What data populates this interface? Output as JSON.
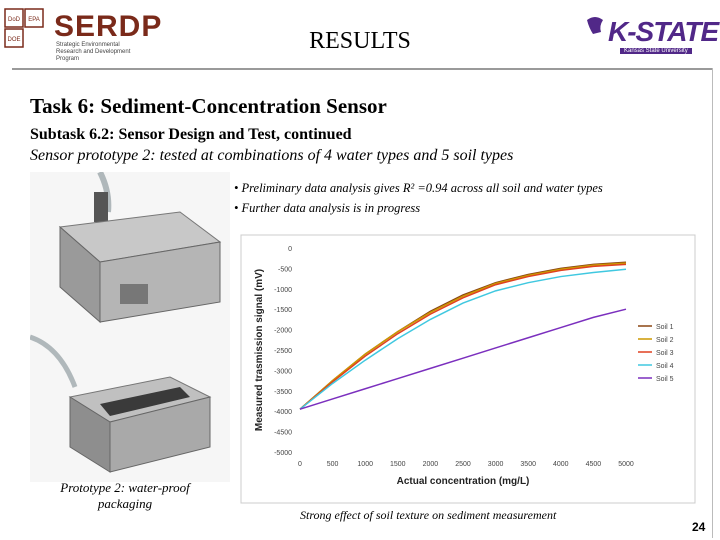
{
  "header": {
    "left_logo_text": "SERDP",
    "left_logo_subtitle": "Strategic Environmental Research and Development Program",
    "left_badge_labels": [
      "DoD",
      "EPA",
      "DOE"
    ],
    "title": "RESULTS",
    "right_logo_text": "K-STATE",
    "right_logo_subtitle": "Kansas State University"
  },
  "content": {
    "task_title": "Task 6:  Sediment-Concentration Sensor",
    "subtask": "Subtask 6.2:  Sensor Design and Test, continued",
    "prototype_description": "Sensor prototype 2: tested at combinations of 4 water types and 5 soil types",
    "bullets": [
      "• Preliminary data analysis gives R² =0.94 across all soil and water types",
      "• Further data analysis is in progress"
    ],
    "photo_caption_line1": "Prototype 2: water-proof",
    "photo_caption_line2": "packaging",
    "chart_caption": "Strong effect of soil texture on sediment measurement",
    "page_number": "24"
  },
  "colors": {
    "serdp_brown": "#7a2a1a",
    "kstate_purple": "#512888",
    "series": [
      "#8b4513",
      "#cc9900",
      "#e04020",
      "#40c8e0",
      "#7b2fbe"
    ]
  },
  "chart_data": {
    "type": "line",
    "title": "",
    "xlabel": "Actual concentration (mg/L)",
    "ylabel": "Measured trasmission signal (mV)",
    "xlim": [
      0,
      5000
    ],
    "ylim": [
      -5000,
      0
    ],
    "x_ticks": [
      "0",
      "500",
      "1000",
      "1500",
      "2000",
      "2500",
      "3000",
      "3500",
      "4000",
      "4500",
      "5000"
    ],
    "y_ticks": [
      "0",
      "-500",
      "-1000",
      "-1500",
      "-2000",
      "-2500",
      "-3000",
      "-3500",
      "-4000",
      "-4500",
      "-5000"
    ],
    "grid": false,
    "legend_position": "right",
    "series": [
      {
        "name": "Soil 1",
        "x": [
          0,
          500,
          1000,
          1500,
          2000,
          2500,
          3000,
          3500,
          4000,
          4500,
          5000
        ],
        "values": [
          -3950,
          -3250,
          -2600,
          -2050,
          -1550,
          -1150,
          -850,
          -650,
          -500,
          -400,
          -350
        ]
      },
      {
        "name": "Soil 2",
        "x": [
          0,
          500,
          1000,
          1500,
          2000,
          2500,
          3000,
          3500,
          4000,
          4500,
          5000
        ],
        "values": [
          -3950,
          -3250,
          -2600,
          -2050,
          -1580,
          -1180,
          -870,
          -670,
          -520,
          -420,
          -370
        ]
      },
      {
        "name": "Soil 3",
        "x": [
          0,
          500,
          1000,
          1500,
          2000,
          2500,
          3000,
          3500,
          4000,
          4500,
          5000
        ],
        "values": [
          -3950,
          -3280,
          -2650,
          -2100,
          -1620,
          -1220,
          -900,
          -700,
          -550,
          -450,
          -400
        ]
      },
      {
        "name": "Soil 4",
        "x": [
          0,
          500,
          1000,
          1500,
          2000,
          2500,
          3000,
          3500,
          4000,
          4500,
          5000
        ],
        "values": [
          -3950,
          -3320,
          -2750,
          -2220,
          -1750,
          -1350,
          -1050,
          -850,
          -700,
          -600,
          -520
        ]
      },
      {
        "name": "Soil 5",
        "x": [
          0,
          500,
          1000,
          1500,
          2000,
          2500,
          3000,
          3500,
          4000,
          4500,
          5000
        ],
        "values": [
          -3950,
          -3700,
          -3450,
          -3200,
          -2950,
          -2700,
          -2450,
          -2200,
          -1950,
          -1700,
          -1500
        ]
      }
    ]
  }
}
